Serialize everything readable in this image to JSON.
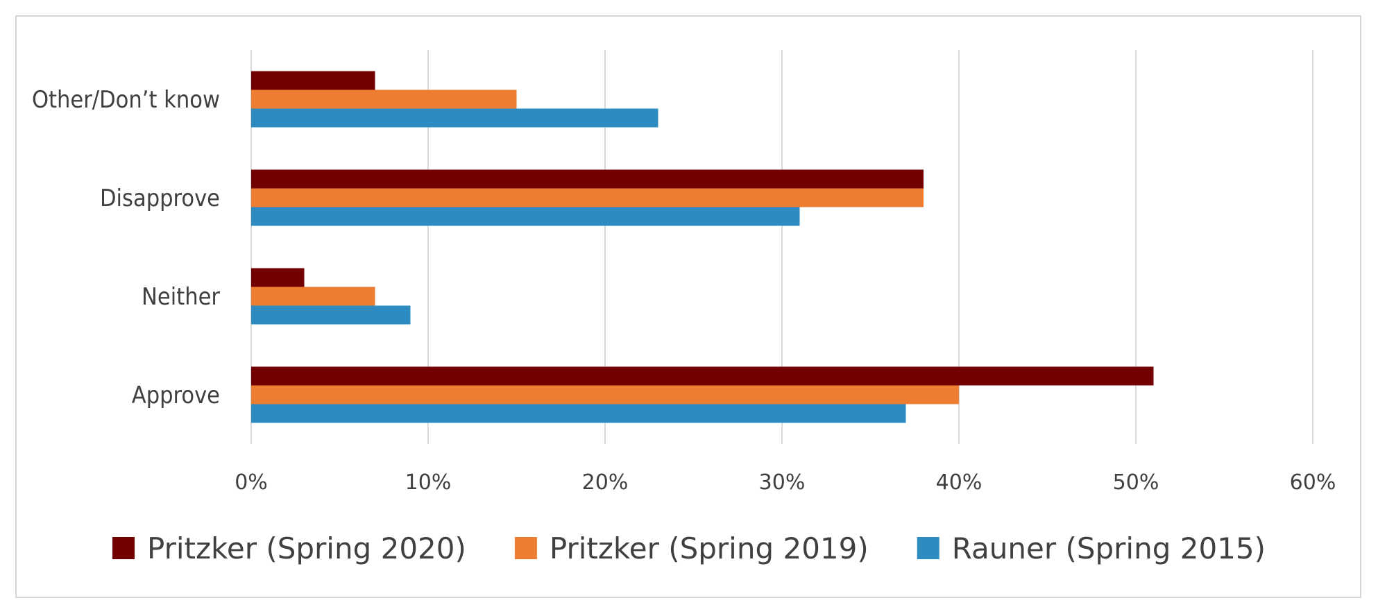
{
  "chart_data": {
    "type": "bar",
    "orientation": "horizontal",
    "categories": [
      "Approve",
      "Neither",
      "Disapprove",
      "Other/Don’t know"
    ],
    "series": [
      {
        "name": "Pritzker (Spring 2020)",
        "color": "#720000",
        "values": [
          51,
          3,
          38,
          7
        ]
      },
      {
        "name": "Pritzker (Spring 2019)",
        "color": "#ed7d31",
        "values": [
          40,
          7,
          38,
          15
        ]
      },
      {
        "name": "Rauner (Spring 2015)",
        "color": "#2e8bc0",
        "values": [
          37,
          9,
          31,
          23
        ]
      }
    ],
    "xlim": [
      0,
      60
    ],
    "ticks": [
      0,
      10,
      20,
      30,
      40,
      50,
      60
    ],
    "tick_suffix": "%",
    "grid": true,
    "legend_position": "bottom",
    "title": "",
    "xlabel": "",
    "ylabel": ""
  }
}
